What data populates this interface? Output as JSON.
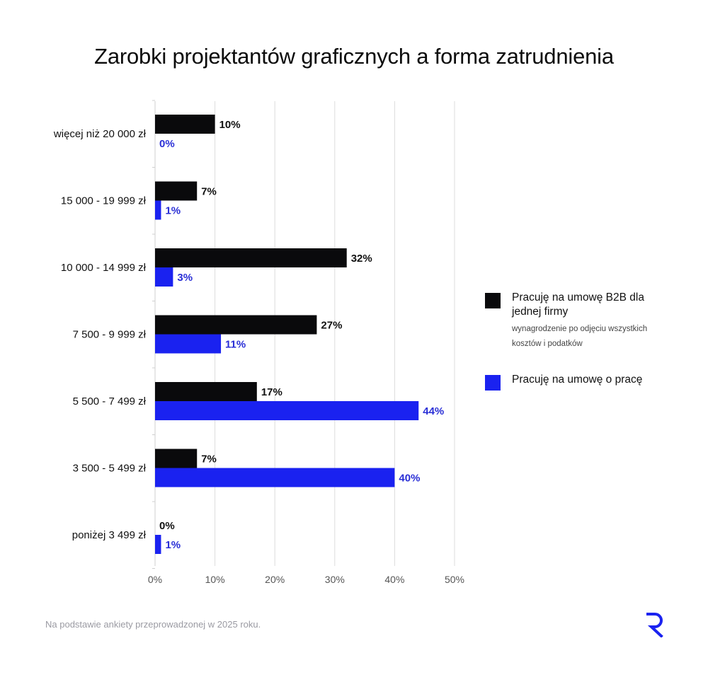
{
  "title": "Zarobki projektantów graficznych a forma zatrudnienia",
  "legend": {
    "b2b_label": "Pracuję na umowę B2B dla jednej firmy",
    "b2b_note": "wynagrodzenie po odjęciu wszystkich kosztów i podatków",
    "uop_label": "Pracuję na umowę o pracę"
  },
  "footnote": "Na podstawie ankiety przeprowadzonej w 2025 roku.",
  "colors": {
    "b2b": "#0a0a0c",
    "uop": "#1a22f0",
    "uop_text": "#2a2fd6",
    "grid": "#dddddd"
  },
  "chart_data": {
    "type": "bar",
    "orientation": "horizontal",
    "title": "Zarobki projektantów graficznych a forma zatrudnienia",
    "categories": [
      "więcej niż 20 000 zł",
      "15 000 - 19 999 zł",
      "10 000 - 14 999 zł",
      "7 500 - 9 999 zł",
      "5 500 - 7 499 zł",
      "3 500 - 5 499 zł",
      "poniżej 3 499 zł"
    ],
    "series": [
      {
        "name": "Pracuję na umowę B2B dla jednej firmy",
        "values": [
          10,
          7,
          32,
          27,
          17,
          7,
          0
        ],
        "labels": [
          "10%",
          "7%",
          "32%",
          "27%",
          "17%",
          "7%",
          "0%"
        ]
      },
      {
        "name": "Pracuję na umowę o pracę",
        "values": [
          0,
          1,
          3,
          11,
          44,
          40,
          1
        ],
        "labels": [
          "0%",
          "1%",
          "3%",
          "11%",
          "44%",
          "40%",
          "1%"
        ]
      }
    ],
    "xlim": [
      0,
      50
    ],
    "xticks": [
      0,
      10,
      20,
      30,
      40,
      50
    ],
    "xtick_labels": [
      "0%",
      "10%",
      "20%",
      "30%",
      "40%",
      "50%"
    ],
    "grid": true,
    "legend_position": "right"
  }
}
